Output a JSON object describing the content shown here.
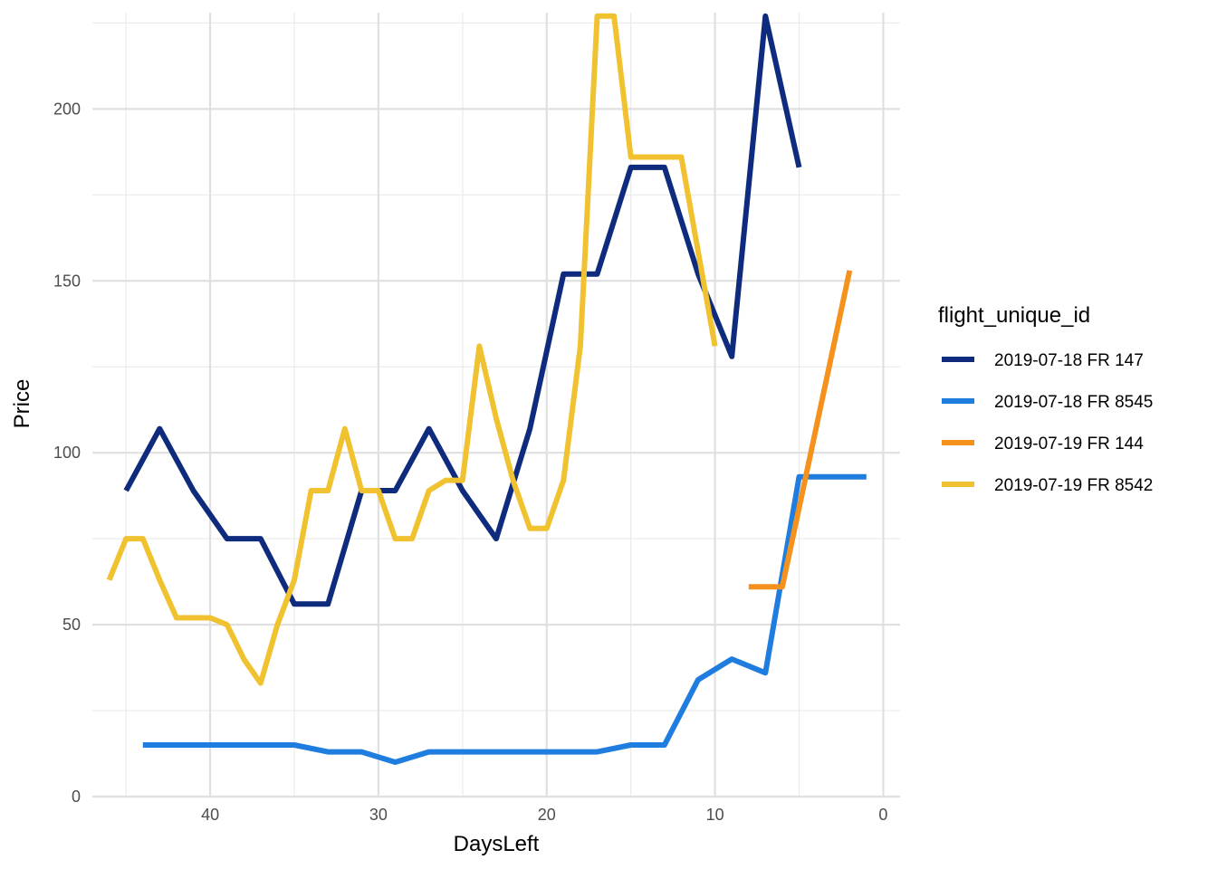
{
  "chart_data": {
    "type": "line",
    "title": "",
    "xlabel": "DaysLeft",
    "ylabel": "Price",
    "x_reversed": true,
    "xlim": [
      47,
      -1
    ],
    "ylim": [
      0,
      228
    ],
    "x_ticks": [
      40,
      30,
      20,
      10,
      0
    ],
    "y_ticks": [
      0,
      50,
      100,
      150,
      200
    ],
    "grid": true,
    "legend_title": "flight_unique_id",
    "legend_position": "right",
    "series": [
      {
        "name": "2019-07-18 FR 147",
        "color": "#0f2b7d",
        "points": [
          [
            45,
            89
          ],
          [
            43,
            107
          ],
          [
            41,
            89
          ],
          [
            39,
            75
          ],
          [
            37,
            75
          ],
          [
            35,
            56
          ],
          [
            33,
            56
          ],
          [
            31,
            89
          ],
          [
            29,
            89
          ],
          [
            27,
            107
          ],
          [
            25,
            89
          ],
          [
            23,
            75
          ],
          [
            21,
            107
          ],
          [
            19,
            152
          ],
          [
            17,
            152
          ],
          [
            15,
            183
          ],
          [
            13,
            183
          ],
          [
            11,
            152
          ],
          [
            9,
            128
          ],
          [
            7,
            227
          ],
          [
            5,
            183
          ]
        ]
      },
      {
        "name": "2019-07-18 FR 8545",
        "color": "#1f7de0",
        "points": [
          [
            44,
            15
          ],
          [
            42,
            15
          ],
          [
            40,
            15
          ],
          [
            38,
            15
          ],
          [
            35,
            15
          ],
          [
            33,
            13
          ],
          [
            31,
            13
          ],
          [
            29,
            10
          ],
          [
            27,
            13
          ],
          [
            25,
            13
          ],
          [
            23,
            13
          ],
          [
            21,
            13
          ],
          [
            19,
            13
          ],
          [
            17,
            13
          ],
          [
            15,
            15
          ],
          [
            13,
            15
          ],
          [
            11,
            34
          ],
          [
            9,
            40
          ],
          [
            7,
            36
          ],
          [
            5,
            93
          ],
          [
            3,
            93
          ],
          [
            1,
            93
          ]
        ]
      },
      {
        "name": "2019-07-19 FR 144",
        "color": "#f5921e",
        "points": [
          [
            8,
            61
          ],
          [
            6,
            61
          ],
          [
            2,
            153
          ]
        ]
      },
      {
        "name": "2019-07-19 FR 8542",
        "color": "#f0c230",
        "points": [
          [
            46,
            63
          ],
          [
            45,
            75
          ],
          [
            44,
            75
          ],
          [
            43,
            63
          ],
          [
            42,
            52
          ],
          [
            40,
            52
          ],
          [
            39,
            50
          ],
          [
            38,
            40
          ],
          [
            37,
            33
          ],
          [
            36,
            50
          ],
          [
            35,
            63
          ],
          [
            34,
            89
          ],
          [
            33,
            89
          ],
          [
            32,
            107
          ],
          [
            31,
            89
          ],
          [
            30,
            89
          ],
          [
            29,
            75
          ],
          [
            28,
            75
          ],
          [
            27,
            89
          ],
          [
            26,
            92
          ],
          [
            25,
            92
          ],
          [
            24,
            131
          ],
          [
            23,
            110
          ],
          [
            22,
            92
          ],
          [
            21,
            78
          ],
          [
            20,
            78
          ],
          [
            19,
            92
          ],
          [
            18,
            131
          ],
          [
            17,
            227
          ],
          [
            16,
            227
          ],
          [
            15,
            186
          ],
          [
            12,
            186
          ],
          [
            10,
            131
          ]
        ]
      }
    ]
  }
}
